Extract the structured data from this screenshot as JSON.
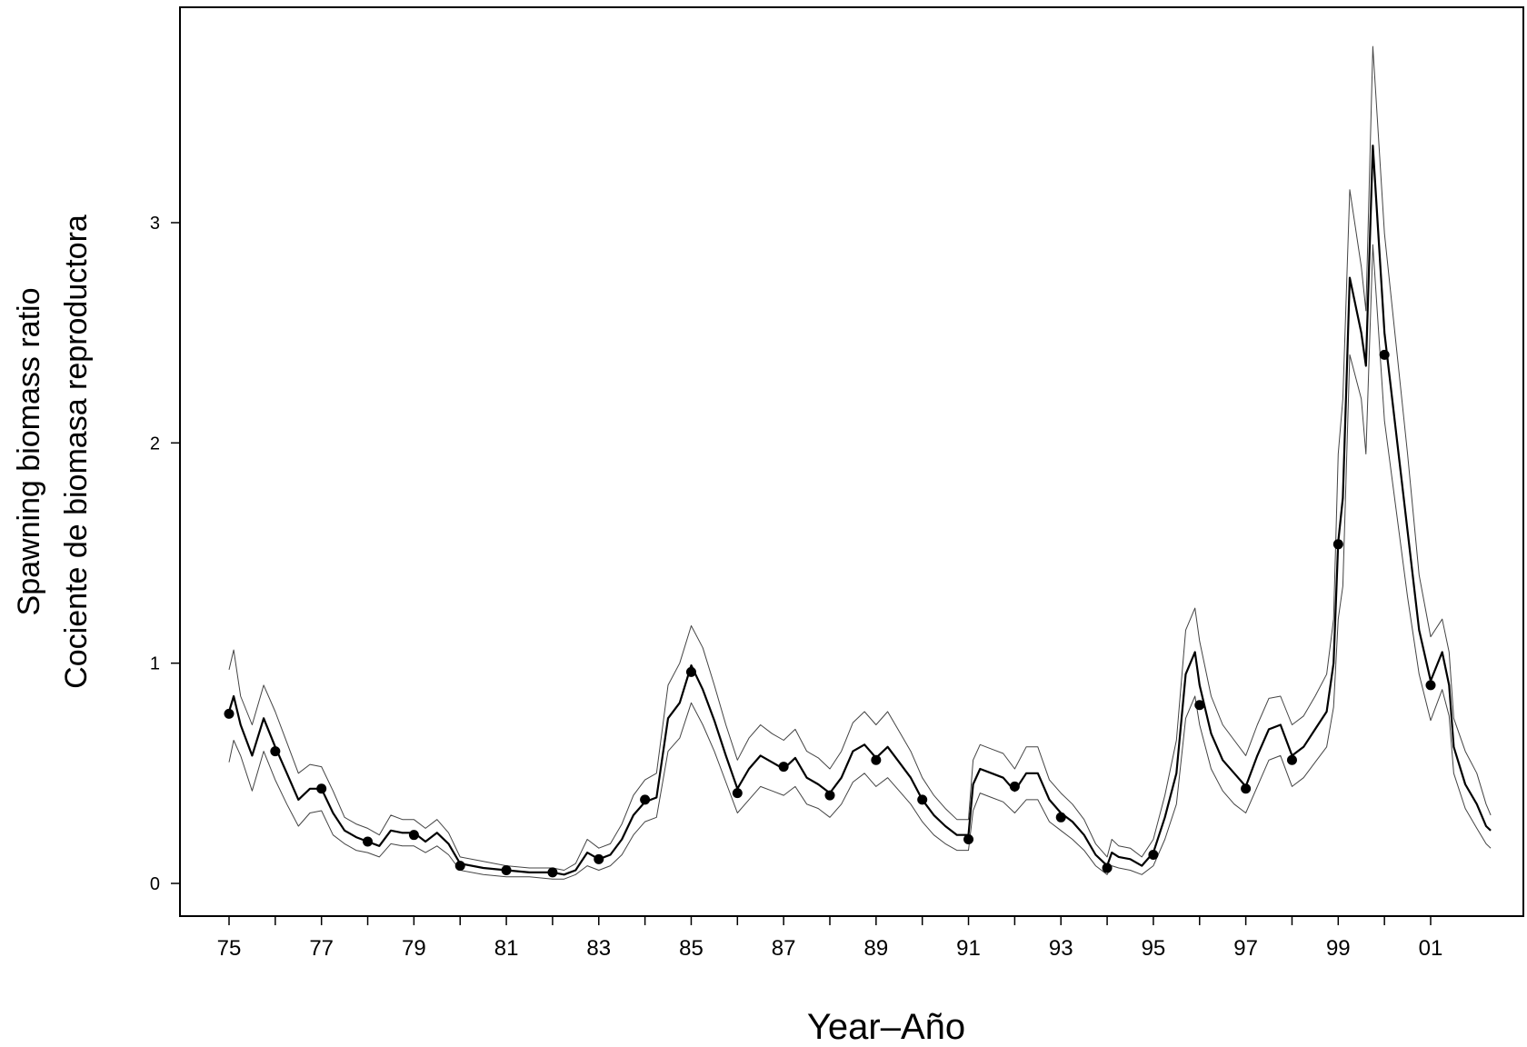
{
  "chart_data": {
    "type": "line",
    "title": "",
    "xlabel": "Year–Año",
    "ylabel": [
      "Spawning biomass ratio",
      "Cociente de biomasa reproductora"
    ],
    "xlim": [
      1974.5,
      2002.7
    ],
    "ylim": [
      -0.15,
      4.0
    ],
    "x_ticks": [
      1975,
      1976,
      1977,
      1978,
      1979,
      1980,
      1981,
      1982,
      1983,
      1984,
      1985,
      1986,
      1987,
      1988,
      1989,
      1990,
      1991,
      1992,
      1993,
      1994,
      1995,
      1996,
      1997,
      1998,
      1999,
      2000,
      2001
    ],
    "x_tick_labels": [
      "75",
      "",
      "77",
      "",
      "79",
      "",
      "81",
      "",
      "83",
      "",
      "85",
      "",
      "87",
      "",
      "89",
      "",
      "91",
      "",
      "93",
      "",
      "95",
      "",
      "97",
      "",
      "99",
      "",
      "01"
    ],
    "y_ticks": [
      0,
      1,
      2,
      3
    ],
    "y_tick_labels": [
      "0",
      "1",
      "2",
      "3"
    ],
    "grid": false,
    "series": [
      {
        "role": "estimate",
        "x": [
          1975.0,
          1975.1,
          1975.25,
          1975.5,
          1975.75,
          1976.0,
          1976.25,
          1976.5,
          1976.75,
          1977.0,
          1977.25,
          1977.5,
          1977.75,
          1978.0,
          1978.25,
          1978.5,
          1978.75,
          1979.0,
          1979.25,
          1979.5,
          1979.75,
          1980.0,
          1980.5,
          1981.0,
          1981.5,
          1982.0,
          1982.25,
          1982.5,
          1982.75,
          1983.0,
          1983.25,
          1983.5,
          1983.75,
          1984.0,
          1984.25,
          1984.5,
          1984.75,
          1985.0,
          1985.25,
          1985.5,
          1985.75,
          1986.0,
          1986.25,
          1986.5,
          1986.75,
          1987.0,
          1987.25,
          1987.5,
          1987.75,
          1988.0,
          1988.25,
          1988.5,
          1988.75,
          1989.0,
          1989.25,
          1989.5,
          1989.75,
          1990.0,
          1990.25,
          1990.5,
          1990.75,
          1991.0,
          1991.1,
          1991.25,
          1991.5,
          1991.75,
          1992.0,
          1992.25,
          1992.5,
          1992.75,
          1993.0,
          1993.25,
          1993.5,
          1993.75,
          1994.0,
          1994.1,
          1994.25,
          1994.5,
          1994.75,
          1995.0,
          1995.25,
          1995.5,
          1995.7,
          1995.9,
          1996.0,
          1996.25,
          1996.5,
          1996.75,
          1997.0,
          1997.25,
          1997.5,
          1997.75,
          1998.0,
          1998.25,
          1998.5,
          1998.75,
          1998.9,
          1999.0,
          1999.1,
          1999.25,
          1999.5,
          1999.6,
          1999.75,
          2000.0,
          2000.25,
          2000.5,
          2000.75,
          2001.0,
          2001.25,
          2001.4,
          2001.5,
          2001.75,
          2002.0,
          2002.2,
          2002.3
        ],
        "y": [
          0.78,
          0.85,
          0.72,
          0.58,
          0.75,
          0.62,
          0.5,
          0.38,
          0.43,
          0.43,
          0.32,
          0.24,
          0.21,
          0.19,
          0.17,
          0.24,
          0.23,
          0.23,
          0.19,
          0.23,
          0.18,
          0.09,
          0.07,
          0.06,
          0.05,
          0.05,
          0.04,
          0.06,
          0.14,
          0.11,
          0.13,
          0.2,
          0.31,
          0.37,
          0.39,
          0.75,
          0.82,
          0.99,
          0.88,
          0.74,
          0.58,
          0.43,
          0.52,
          0.58,
          0.55,
          0.52,
          0.57,
          0.48,
          0.45,
          0.41,
          0.48,
          0.6,
          0.63,
          0.57,
          0.62,
          0.55,
          0.48,
          0.38,
          0.31,
          0.26,
          0.22,
          0.22,
          0.45,
          0.52,
          0.5,
          0.48,
          0.42,
          0.5,
          0.5,
          0.38,
          0.32,
          0.28,
          0.22,
          0.13,
          0.08,
          0.14,
          0.12,
          0.11,
          0.08,
          0.14,
          0.3,
          0.5,
          0.95,
          1.05,
          0.9,
          0.68,
          0.56,
          0.5,
          0.44,
          0.58,
          0.7,
          0.72,
          0.58,
          0.62,
          0.7,
          0.78,
          1.0,
          1.55,
          1.75,
          2.75,
          2.5,
          2.35,
          3.35,
          2.5,
          2.05,
          1.6,
          1.15,
          0.92,
          1.05,
          0.9,
          0.62,
          0.45,
          0.36,
          0.26,
          0.24
        ]
      },
      {
        "role": "upper",
        "x": [
          1975.0,
          1975.1,
          1975.25,
          1975.5,
          1975.75,
          1976.0,
          1976.25,
          1976.5,
          1976.75,
          1977.0,
          1977.25,
          1977.5,
          1977.75,
          1978.0,
          1978.25,
          1978.5,
          1978.75,
          1979.0,
          1979.25,
          1979.5,
          1979.75,
          1980.0,
          1980.5,
          1981.0,
          1981.5,
          1982.0,
          1982.25,
          1982.5,
          1982.75,
          1983.0,
          1983.25,
          1983.5,
          1983.75,
          1984.0,
          1984.25,
          1984.5,
          1984.75,
          1985.0,
          1985.25,
          1985.5,
          1985.75,
          1986.0,
          1986.25,
          1986.5,
          1986.75,
          1987.0,
          1987.25,
          1987.5,
          1987.75,
          1988.0,
          1988.25,
          1988.5,
          1988.75,
          1989.0,
          1989.25,
          1989.5,
          1989.75,
          1990.0,
          1990.25,
          1990.5,
          1990.75,
          1991.0,
          1991.1,
          1991.25,
          1991.5,
          1991.75,
          1992.0,
          1992.25,
          1992.5,
          1992.75,
          1993.0,
          1993.25,
          1993.5,
          1993.75,
          1994.0,
          1994.1,
          1994.25,
          1994.5,
          1994.75,
          1995.0,
          1995.25,
          1995.5,
          1995.7,
          1995.9,
          1996.0,
          1996.25,
          1996.5,
          1996.75,
          1997.0,
          1997.25,
          1997.5,
          1997.75,
          1998.0,
          1998.25,
          1998.5,
          1998.75,
          1998.9,
          1999.0,
          1999.1,
          1999.25,
          1999.5,
          1999.6,
          1999.75,
          2000.0,
          2000.25,
          2000.5,
          2000.75,
          2001.0,
          2001.25,
          2001.4,
          2001.5,
          2001.75,
          2002.0,
          2002.2,
          2002.3
        ],
        "y": [
          0.97,
          1.06,
          0.85,
          0.72,
          0.9,
          0.78,
          0.64,
          0.5,
          0.54,
          0.53,
          0.42,
          0.3,
          0.27,
          0.25,
          0.22,
          0.31,
          0.29,
          0.29,
          0.25,
          0.29,
          0.23,
          0.12,
          0.1,
          0.08,
          0.07,
          0.07,
          0.06,
          0.09,
          0.2,
          0.16,
          0.18,
          0.27,
          0.4,
          0.47,
          0.5,
          0.9,
          1.0,
          1.17,
          1.07,
          0.9,
          0.72,
          0.56,
          0.66,
          0.72,
          0.68,
          0.65,
          0.7,
          0.6,
          0.57,
          0.52,
          0.6,
          0.73,
          0.78,
          0.72,
          0.78,
          0.69,
          0.6,
          0.48,
          0.4,
          0.34,
          0.29,
          0.29,
          0.56,
          0.63,
          0.61,
          0.59,
          0.52,
          0.62,
          0.62,
          0.47,
          0.41,
          0.36,
          0.29,
          0.18,
          0.12,
          0.2,
          0.17,
          0.16,
          0.12,
          0.2,
          0.4,
          0.65,
          1.15,
          1.25,
          1.1,
          0.85,
          0.72,
          0.65,
          0.58,
          0.72,
          0.84,
          0.85,
          0.72,
          0.76,
          0.85,
          0.95,
          1.2,
          1.95,
          2.2,
          3.15,
          2.8,
          2.6,
          3.8,
          2.95,
          2.45,
          1.95,
          1.4,
          1.12,
          1.2,
          1.05,
          0.75,
          0.6,
          0.5,
          0.36,
          0.31
        ]
      },
      {
        "role": "lower",
        "x": [
          1975.0,
          1975.1,
          1975.25,
          1975.5,
          1975.75,
          1976.0,
          1976.25,
          1976.5,
          1976.75,
          1977.0,
          1977.25,
          1977.5,
          1977.75,
          1978.0,
          1978.25,
          1978.5,
          1978.75,
          1979.0,
          1979.25,
          1979.5,
          1979.75,
          1980.0,
          1980.5,
          1981.0,
          1981.5,
          1982.0,
          1982.25,
          1982.5,
          1982.75,
          1983.0,
          1983.25,
          1983.5,
          1983.75,
          1984.0,
          1984.25,
          1984.5,
          1984.75,
          1985.0,
          1985.25,
          1985.5,
          1985.75,
          1986.0,
          1986.25,
          1986.5,
          1986.75,
          1987.0,
          1987.25,
          1987.5,
          1987.75,
          1988.0,
          1988.25,
          1988.5,
          1988.75,
          1989.0,
          1989.25,
          1989.5,
          1989.75,
          1990.0,
          1990.25,
          1990.5,
          1990.75,
          1991.0,
          1991.1,
          1991.25,
          1991.5,
          1991.75,
          1992.0,
          1992.25,
          1992.5,
          1992.75,
          1993.0,
          1993.25,
          1993.5,
          1993.75,
          1994.0,
          1994.1,
          1994.25,
          1994.5,
          1994.75,
          1995.0,
          1995.25,
          1995.5,
          1995.7,
          1995.9,
          1996.0,
          1996.25,
          1996.5,
          1996.75,
          1997.0,
          1997.25,
          1997.5,
          1997.75,
          1998.0,
          1998.25,
          1998.5,
          1998.75,
          1998.9,
          1999.0,
          1999.1,
          1999.25,
          1999.5,
          1999.6,
          1999.75,
          2000.0,
          2000.25,
          2000.5,
          2000.75,
          2001.0,
          2001.25,
          2001.4,
          2001.5,
          2001.75,
          2002.0,
          2002.2,
          2002.3
        ],
        "y": [
          0.55,
          0.65,
          0.58,
          0.42,
          0.6,
          0.47,
          0.36,
          0.26,
          0.32,
          0.33,
          0.22,
          0.18,
          0.15,
          0.14,
          0.12,
          0.18,
          0.17,
          0.17,
          0.14,
          0.17,
          0.13,
          0.06,
          0.04,
          0.03,
          0.03,
          0.02,
          0.02,
          0.04,
          0.08,
          0.06,
          0.08,
          0.13,
          0.22,
          0.28,
          0.3,
          0.6,
          0.66,
          0.82,
          0.72,
          0.6,
          0.46,
          0.32,
          0.38,
          0.44,
          0.42,
          0.4,
          0.44,
          0.36,
          0.34,
          0.3,
          0.36,
          0.46,
          0.5,
          0.44,
          0.48,
          0.42,
          0.36,
          0.28,
          0.22,
          0.18,
          0.15,
          0.15,
          0.33,
          0.41,
          0.39,
          0.37,
          0.32,
          0.38,
          0.38,
          0.28,
          0.24,
          0.2,
          0.15,
          0.08,
          0.04,
          0.08,
          0.07,
          0.06,
          0.04,
          0.08,
          0.2,
          0.36,
          0.75,
          0.85,
          0.72,
          0.52,
          0.42,
          0.36,
          0.32,
          0.44,
          0.56,
          0.58,
          0.44,
          0.48,
          0.55,
          0.62,
          0.8,
          1.2,
          1.35,
          2.4,
          2.2,
          1.95,
          2.9,
          2.1,
          1.7,
          1.3,
          0.95,
          0.74,
          0.88,
          0.76,
          0.5,
          0.34,
          0.25,
          0.18,
          0.16
        ]
      },
      {
        "role": "annual-points",
        "x": [
          1975,
          1976,
          1977,
          1978,
          1979,
          1980,
          1981,
          1982,
          1983,
          1984,
          1985,
          1986,
          1987,
          1988,
          1989,
          1990,
          1991,
          1992,
          1993,
          1994,
          1995,
          1996,
          1997,
          1998,
          1999,
          2000,
          2001
        ],
        "y": [
          0.77,
          0.6,
          0.43,
          0.19,
          0.22,
          0.08,
          0.06,
          0.05,
          0.11,
          0.38,
          0.96,
          0.41,
          0.53,
          0.4,
          0.56,
          0.38,
          0.2,
          0.44,
          0.3,
          0.07,
          0.13,
          0.81,
          0.43,
          0.56,
          1.54,
          2.4,
          0.9
        ]
      }
    ]
  }
}
